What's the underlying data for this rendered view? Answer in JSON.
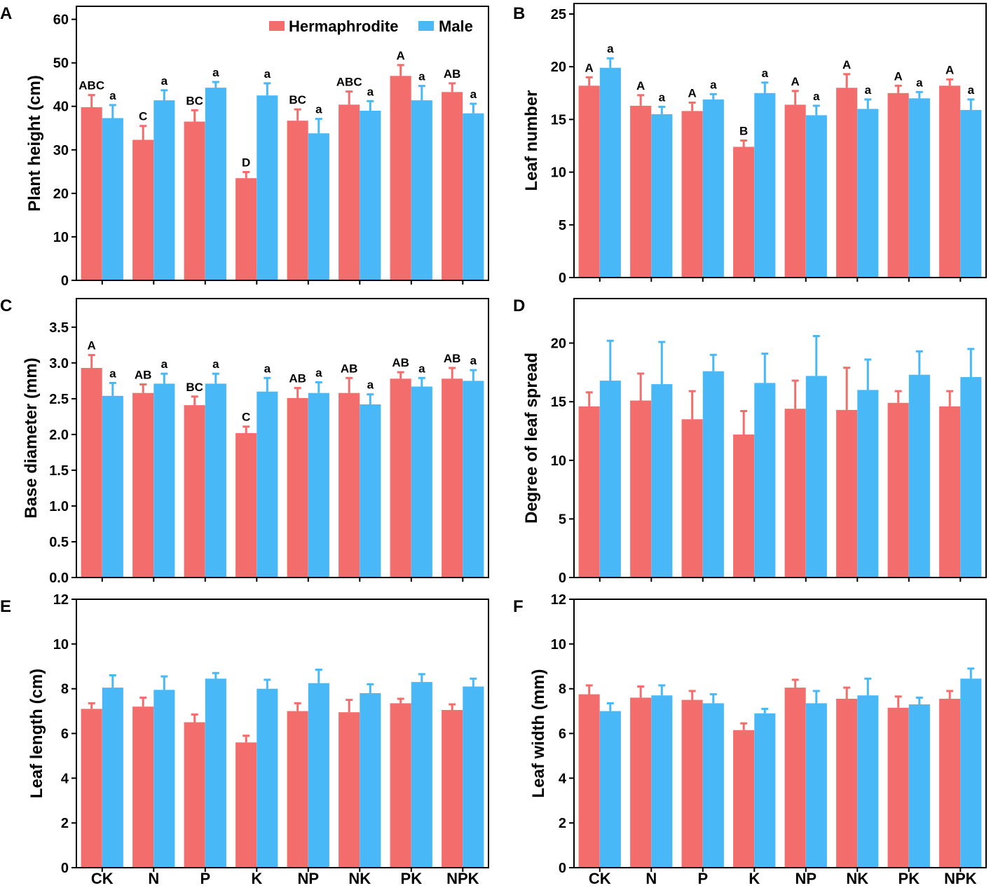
{
  "legend": {
    "items": [
      {
        "name": "Hermaphrodite",
        "color": "#f36d6c"
      },
      {
        "name": "Male",
        "color": "#49b8f6"
      }
    ]
  },
  "colors": {
    "hermaphrodite": "#f36d6c",
    "male": "#49b8f6",
    "axis": "#000000"
  },
  "chart_data": [
    {
      "id": "A",
      "panel": "A",
      "type": "bar",
      "ylabel": "Plant height (cm)",
      "ylim": [
        0,
        63
      ],
      "yticks": [
        0,
        10,
        20,
        30,
        40,
        50,
        60
      ],
      "categories": [
        "CK",
        "N",
        "P",
        "K",
        "NP",
        "NK",
        "PK",
        "NPK"
      ],
      "show_category_labels": false,
      "series": [
        {
          "name": "Hermaphrodite",
          "values": [
            39.8,
            32.3,
            36.5,
            23.5,
            36.7,
            40.4,
            47.0,
            43.3
          ],
          "errors": [
            2.8,
            3.2,
            2.6,
            1.4,
            2.6,
            3.0,
            2.5,
            2.0
          ],
          "labels": [
            "ABC",
            "C",
            "BC",
            "D",
            "BC",
            "ABC",
            "A",
            "AB"
          ]
        },
        {
          "name": "Male",
          "values": [
            37.3,
            41.4,
            44.3,
            42.5,
            33.8,
            39.0,
            41.4,
            38.4
          ],
          "errors": [
            3.0,
            2.3,
            1.3,
            2.8,
            3.3,
            2.2,
            3.3,
            2.2
          ],
          "labels": [
            "a",
            "a",
            "a",
            "a",
            "a",
            "a",
            "a",
            "a"
          ]
        }
      ]
    },
    {
      "id": "B",
      "panel": "B",
      "type": "bar",
      "ylabel": "Leaf number",
      "ylim": [
        0,
        26
      ],
      "yticks": [
        0,
        5,
        10,
        15,
        20,
        25
      ],
      "categories": [
        "CK",
        "N",
        "P",
        "K",
        "NP",
        "NK",
        "PK",
        "NPK"
      ],
      "show_category_labels": false,
      "series": [
        {
          "name": "Hermaphrodite",
          "values": [
            18.2,
            16.3,
            15.8,
            12.4,
            16.4,
            18.0,
            17.5,
            18.2
          ],
          "errors": [
            0.8,
            1.0,
            0.8,
            0.6,
            1.3,
            1.3,
            0.7,
            0.6
          ],
          "labels": [
            "A",
            "A",
            "A",
            "B",
            "A",
            "A",
            "A",
            "A"
          ]
        },
        {
          "name": "Male",
          "values": [
            19.9,
            15.5,
            16.9,
            17.5,
            15.4,
            16.0,
            17.0,
            15.9
          ],
          "errors": [
            0.9,
            0.7,
            0.5,
            1.0,
            0.9,
            0.9,
            0.6,
            1.0
          ],
          "labels": [
            "a",
            "a",
            "a",
            "a",
            "a",
            "a",
            "a",
            "a"
          ]
        }
      ]
    },
    {
      "id": "C",
      "panel": "C",
      "type": "bar",
      "ylabel": "Base diameter (mm)",
      "ylim": [
        0,
        3.9
      ],
      "yticks": [
        0.0,
        0.5,
        1.0,
        1.5,
        2.0,
        2.5,
        3.0,
        3.5
      ],
      "tick_decimals": 1,
      "categories": [
        "CK",
        "N",
        "P",
        "K",
        "NP",
        "NK",
        "PK",
        "NPK"
      ],
      "show_category_labels": false,
      "series": [
        {
          "name": "Hermaphrodite",
          "values": [
            2.93,
            2.58,
            2.41,
            2.02,
            2.51,
            2.58,
            2.78,
            2.78
          ],
          "errors": [
            0.18,
            0.12,
            0.12,
            0.09,
            0.14,
            0.21,
            0.09,
            0.15
          ],
          "labels": [
            "A",
            "AB",
            "BC",
            "C",
            "AB",
            "AB",
            "AB",
            "AB"
          ]
        },
        {
          "name": "Male",
          "values": [
            2.54,
            2.71,
            2.71,
            2.6,
            2.58,
            2.42,
            2.67,
            2.75
          ],
          "errors": [
            0.18,
            0.14,
            0.14,
            0.19,
            0.15,
            0.14,
            0.12,
            0.15
          ],
          "labels": [
            "a",
            "a",
            "a",
            "a",
            "a",
            "a",
            "a",
            "a"
          ]
        }
      ]
    },
    {
      "id": "D",
      "panel": "D",
      "type": "bar",
      "ylabel": "Degree of leaf spread",
      "ylim": [
        0,
        23.8
      ],
      "yticks": [
        0,
        5,
        10,
        15,
        20
      ],
      "categories": [
        "CK",
        "N",
        "P",
        "K",
        "NP",
        "NK",
        "PK",
        "NPK"
      ],
      "show_category_labels": false,
      "series": [
        {
          "name": "Hermaphrodite",
          "values": [
            14.6,
            15.1,
            13.5,
            12.2,
            14.4,
            14.3,
            14.9,
            14.6
          ],
          "errors": [
            1.2,
            2.3,
            2.4,
            2.0,
            2.4,
            3.6,
            1.0,
            1.3
          ],
          "labels": []
        },
        {
          "name": "Male",
          "values": [
            16.8,
            16.5,
            17.6,
            16.6,
            17.2,
            16.0,
            17.3,
            17.1
          ],
          "errors": [
            3.4,
            3.6,
            1.4,
            2.5,
            3.4,
            2.6,
            2.0,
            2.4
          ],
          "labels": []
        }
      ]
    },
    {
      "id": "E",
      "panel": "E",
      "type": "bar",
      "ylabel": "Leaf length (cm)",
      "ylim": [
        0,
        12
      ],
      "yticks": [
        0,
        2,
        4,
        6,
        8,
        10,
        12
      ],
      "categories": [
        "CK",
        "N",
        "P",
        "K",
        "NP",
        "NK",
        "PK",
        "NPK"
      ],
      "show_category_labels": true,
      "series": [
        {
          "name": "Hermaphrodite",
          "values": [
            7.1,
            7.2,
            6.5,
            5.6,
            7.0,
            6.95,
            7.35,
            7.05
          ],
          "errors": [
            0.25,
            0.4,
            0.35,
            0.3,
            0.35,
            0.55,
            0.2,
            0.25
          ],
          "labels": []
        },
        {
          "name": "Male",
          "values": [
            8.05,
            7.95,
            8.45,
            8.0,
            8.25,
            7.8,
            8.3,
            8.1
          ],
          "errors": [
            0.55,
            0.6,
            0.25,
            0.4,
            0.6,
            0.4,
            0.35,
            0.35
          ],
          "labels": []
        }
      ]
    },
    {
      "id": "F",
      "panel": "F",
      "type": "bar",
      "ylabel": "Leaf width (mm)",
      "ylim": [
        0,
        12
      ],
      "yticks": [
        0,
        2,
        4,
        6,
        8,
        10,
        12
      ],
      "categories": [
        "CK",
        "N",
        "P",
        "K",
        "NP",
        "NK",
        "PK",
        "NPK"
      ],
      "show_category_labels": true,
      "series": [
        {
          "name": "Hermaphrodite",
          "values": [
            7.75,
            7.6,
            7.5,
            6.15,
            8.05,
            7.55,
            7.15,
            7.55
          ],
          "errors": [
            0.4,
            0.5,
            0.4,
            0.3,
            0.35,
            0.5,
            0.5,
            0.35
          ],
          "labels": []
        },
        {
          "name": "Male",
          "values": [
            7.0,
            7.7,
            7.35,
            6.9,
            7.35,
            7.7,
            7.3,
            8.45
          ],
          "errors": [
            0.35,
            0.45,
            0.4,
            0.2,
            0.55,
            0.75,
            0.3,
            0.45
          ],
          "labels": []
        }
      ]
    }
  ]
}
